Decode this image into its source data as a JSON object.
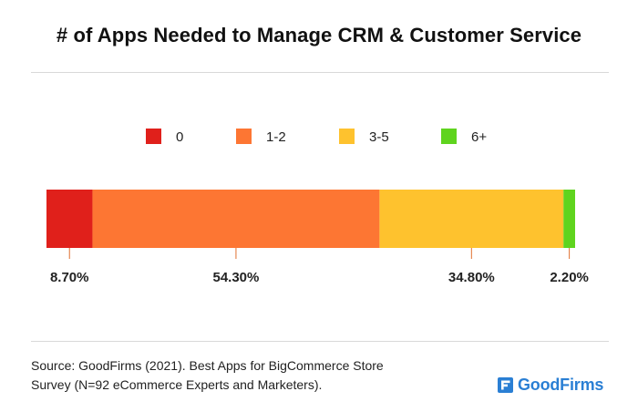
{
  "chart_data": {
    "type": "bar",
    "orientation": "horizontal-stacked-100",
    "title": "# of Apps Needed to Manage CRM & Customer Service",
    "legend_position": "top",
    "series": [
      {
        "name": "0",
        "value": 8.7,
        "label": "8.70%",
        "color": "#e0201b"
      },
      {
        "name": "1-2",
        "value": 54.3,
        "label": "54.30%",
        "color": "#fd7633"
      },
      {
        "name": "3-5",
        "value": 34.8,
        "label": "34.80%",
        "color": "#fec22e"
      },
      {
        "name": "6+",
        "value": 2.2,
        "label": "2.20%",
        "color": "#5fd41e"
      }
    ],
    "xlim": [
      0,
      100
    ],
    "grid": false
  },
  "footer": {
    "source_line1": "Source: GoodFirms (2021). Best Apps for BigCommerce Store",
    "source_line2": "Survey (N=92 eCommerce Experts and Marketers).",
    "brand": "GoodFirms",
    "brand_icon": "goodfirms-logo-icon",
    "brand_color": "#2a7fd4"
  }
}
